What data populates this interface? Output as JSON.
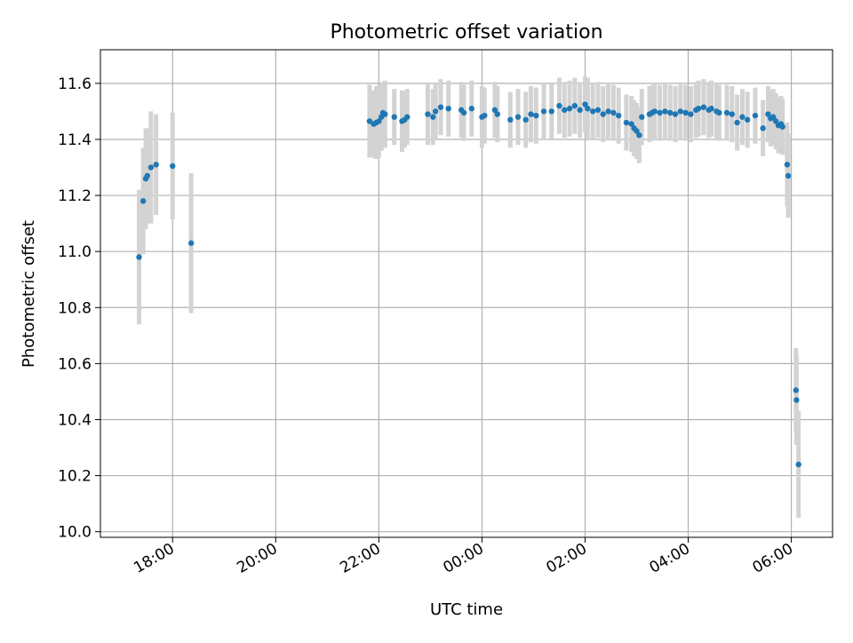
{
  "chart_data": {
    "type": "scatter",
    "title": "Photometric offset variation",
    "xlabel": "UTC time",
    "ylabel": "Photometric offset",
    "x_axis": "time (hours, 24h clock)",
    "xlim_hours": [
      16.6,
      30.8
    ],
    "ylim": [
      9.98,
      11.72
    ],
    "xticks": [
      {
        "hours": 18,
        "label": "18:00"
      },
      {
        "hours": 20,
        "label": "20:00"
      },
      {
        "hours": 22,
        "label": "22:00"
      },
      {
        "hours": 24,
        "label": "00:00"
      },
      {
        "hours": 26,
        "label": "02:00"
      },
      {
        "hours": 28,
        "label": "04:00"
      },
      {
        "hours": 30,
        "label": "06:00"
      }
    ],
    "yticks": [
      10.0,
      10.2,
      10.4,
      10.6,
      10.8,
      11.0,
      11.2,
      11.4,
      11.6
    ],
    "ytick_labels": [
      "10.0",
      "10.2",
      "10.4",
      "10.6",
      "10.8",
      "11.0",
      "11.2",
      "11.4",
      "11.6"
    ],
    "grid": true,
    "marker_color": "#1f77b4",
    "errorbar_color": "#d3d3d3",
    "series": [
      {
        "x_hours": [
          17.35,
          17.43,
          17.48,
          17.51,
          17.58,
          17.68,
          18.0,
          18.36,
          21.82,
          21.9,
          21.95,
          22.0,
          22.05,
          22.08,
          22.12,
          22.3,
          22.45,
          22.5,
          22.55,
          22.95,
          23.05,
          23.1,
          23.2,
          23.35,
          23.6,
          23.65,
          23.8,
          24.0,
          24.05,
          24.25,
          24.3,
          24.55,
          24.7,
          24.85,
          24.95,
          25.05,
          25.2,
          25.35,
          25.5,
          25.6,
          25.7,
          25.8,
          25.9,
          26.0,
          26.05,
          26.15,
          26.25,
          26.35,
          26.45,
          26.55,
          26.65,
          26.8,
          26.9,
          26.95,
          27.0,
          27.05,
          27.1,
          27.25,
          27.3,
          27.35,
          27.45,
          27.55,
          27.65,
          27.75,
          27.85,
          27.95,
          28.05,
          28.15,
          28.2,
          28.3,
          28.4,
          28.45,
          28.55,
          28.6,
          28.75,
          28.85,
          28.95,
          29.05,
          29.15,
          29.3,
          29.45,
          29.55,
          29.6,
          29.65,
          29.7,
          29.75,
          29.8,
          29.83,
          29.92,
          29.94,
          30.09,
          30.1,
          30.14
        ],
        "y": [
          10.98,
          11.18,
          11.26,
          11.27,
          11.3,
          11.31,
          11.305,
          11.03,
          11.465,
          11.455,
          11.46,
          11.465,
          11.48,
          11.495,
          11.49,
          11.48,
          11.465,
          11.47,
          11.48,
          11.49,
          11.48,
          11.5,
          11.515,
          11.51,
          11.505,
          11.495,
          11.51,
          11.48,
          11.485,
          11.505,
          11.49,
          11.47,
          11.48,
          11.47,
          11.49,
          11.485,
          11.5,
          11.5,
          11.52,
          11.505,
          11.51,
          11.52,
          11.505,
          11.525,
          11.51,
          11.5,
          11.505,
          11.49,
          11.5,
          11.495,
          11.485,
          11.46,
          11.455,
          11.44,
          11.43,
          11.415,
          11.48,
          11.49,
          11.495,
          11.5,
          11.495,
          11.5,
          11.495,
          11.49,
          11.5,
          11.495,
          11.49,
          11.505,
          11.51,
          11.515,
          11.505,
          11.51,
          11.5,
          11.495,
          11.495,
          11.49,
          11.46,
          11.48,
          11.47,
          11.485,
          11.44,
          11.49,
          11.475,
          11.48,
          11.465,
          11.45,
          11.455,
          11.445,
          11.31,
          11.27,
          10.505,
          10.47,
          10.24
        ],
        "yerr": [
          0.24,
          0.19,
          0.18,
          0.17,
          0.2,
          0.18,
          0.19,
          0.25,
          0.13,
          0.12,
          0.13,
          0.13,
          0.12,
          0.11,
          0.12,
          0.1,
          0.11,
          0.1,
          0.1,
          0.11,
          0.1,
          0.1,
          0.1,
          0.1,
          0.1,
          0.1,
          0.1,
          0.11,
          0.1,
          0.1,
          0.1,
          0.1,
          0.1,
          0.1,
          0.1,
          0.1,
          0.1,
          0.1,
          0.1,
          0.1,
          0.1,
          0.1,
          0.1,
          0.1,
          0.11,
          0.1,
          0.1,
          0.1,
          0.1,
          0.1,
          0.1,
          0.1,
          0.1,
          0.1,
          0.1,
          0.1,
          0.1,
          0.1,
          0.1,
          0.1,
          0.1,
          0.1,
          0.1,
          0.1,
          0.1,
          0.1,
          0.1,
          0.1,
          0.1,
          0.1,
          0.1,
          0.1,
          0.1,
          0.1,
          0.1,
          0.1,
          0.1,
          0.1,
          0.1,
          0.1,
          0.1,
          0.1,
          0.1,
          0.1,
          0.1,
          0.1,
          0.1,
          0.1,
          0.15,
          0.15,
          0.15,
          0.16,
          0.19
        ]
      }
    ]
  }
}
